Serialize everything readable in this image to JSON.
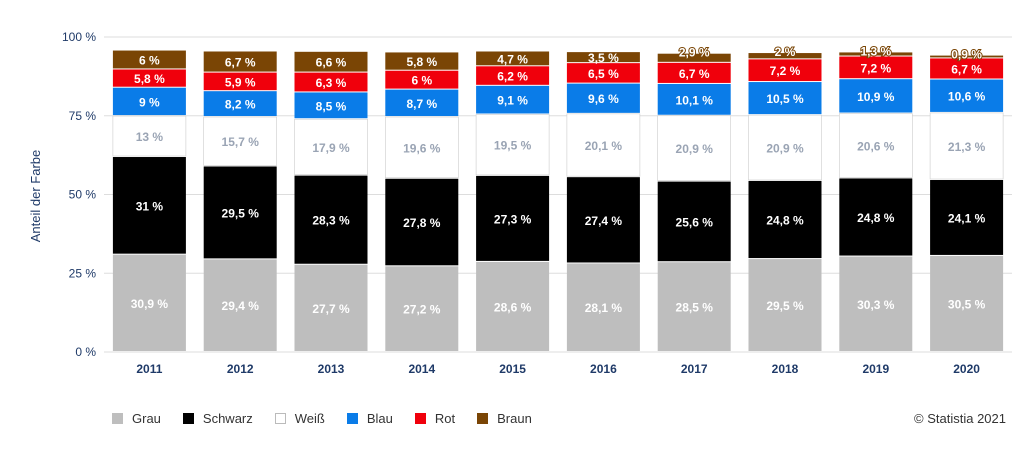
{
  "chart_data": {
    "type": "bar",
    "stacked": true,
    "ylabel": "Anteil der Farbe",
    "ylim": [
      0,
      100
    ],
    "yticks": [
      0,
      25,
      50,
      75,
      100
    ],
    "ytick_labels": [
      "0 %",
      "25 %",
      "50 %",
      "75 %",
      "100 %"
    ],
    "grid": true,
    "legend_position": "bottom-left",
    "categories": [
      "2011",
      "2012",
      "2013",
      "2014",
      "2015",
      "2016",
      "2017",
      "2018",
      "2019",
      "2020"
    ],
    "series": [
      {
        "name": "Grau",
        "color": "#bebebe",
        "values": [
          30.9,
          29.4,
          27.7,
          27.2,
          28.6,
          28.1,
          28.5,
          29.5,
          30.3,
          30.5
        ],
        "labels": [
          "30,9 %",
          "29,4 %",
          "27,7 %",
          "27,2 %",
          "28,6 %",
          "28,1 %",
          "28,5 %",
          "29,5 %",
          "30,3 %",
          "30,5 %"
        ]
      },
      {
        "name": "Schwarz",
        "color": "#000000",
        "values": [
          31,
          29.5,
          28.3,
          27.8,
          27.3,
          27.4,
          25.6,
          24.8,
          24.8,
          24.1
        ],
        "labels": [
          "31 %",
          "29,5 %",
          "28,3 %",
          "27,8 %",
          "27,3 %",
          "27,4 %",
          "25,6 %",
          "24,8 %",
          "24,8 %",
          "24,1 %"
        ]
      },
      {
        "name": "Weiß",
        "color": "#ffffff",
        "values": [
          13,
          15.7,
          17.9,
          19.6,
          19.5,
          20.1,
          20.9,
          20.9,
          20.6,
          21.3
        ],
        "labels": [
          "13 %",
          "15,7 %",
          "17,9 %",
          "19,6 %",
          "19,5 %",
          "20,1 %",
          "20,9 %",
          "20,9 %",
          "20,6 %",
          "21,3 %"
        ]
      },
      {
        "name": "Blau",
        "color": "#0a7ce8",
        "values": [
          9,
          8.2,
          8.5,
          8.7,
          9.1,
          9.6,
          10.1,
          10.5,
          10.9,
          10.6
        ],
        "labels": [
          "9 %",
          "8,2 %",
          "8,5 %",
          "8,7 %",
          "9,1 %",
          "9,6 %",
          "10,1 %",
          "10,5 %",
          "10,9 %",
          "10,6 %"
        ]
      },
      {
        "name": "Rot",
        "color": "#f0000c",
        "values": [
          5.8,
          5.9,
          6.3,
          6,
          6.2,
          6.5,
          6.7,
          7.2,
          7.2,
          6.7
        ],
        "labels": [
          "5,8 %",
          "5,9 %",
          "6,3 %",
          "6 %",
          "6,2 %",
          "6,5 %",
          "6,7 %",
          "7,2 %",
          "7,2 %",
          "6,7 %"
        ]
      },
      {
        "name": "Braun",
        "color": "#7a4505",
        "values": [
          6,
          6.7,
          6.6,
          5.8,
          4.7,
          3.5,
          2.9,
          2,
          1.3,
          0.9
        ],
        "labels": [
          "6 %",
          "6,7 %",
          "6,6 %",
          "5,8 %",
          "4,7 %",
          "3,5 %",
          "2,9 %",
          "2 %",
          "1,3 %",
          "0,9 %"
        ]
      }
    ]
  },
  "credit": "© Statistia 2021",
  "colors": {
    "axis_text": "#1f3a68",
    "grid": "#dddddd",
    "white_bar_stroke": "#cccccc",
    "white_bar_text": "#9aa4b4"
  }
}
